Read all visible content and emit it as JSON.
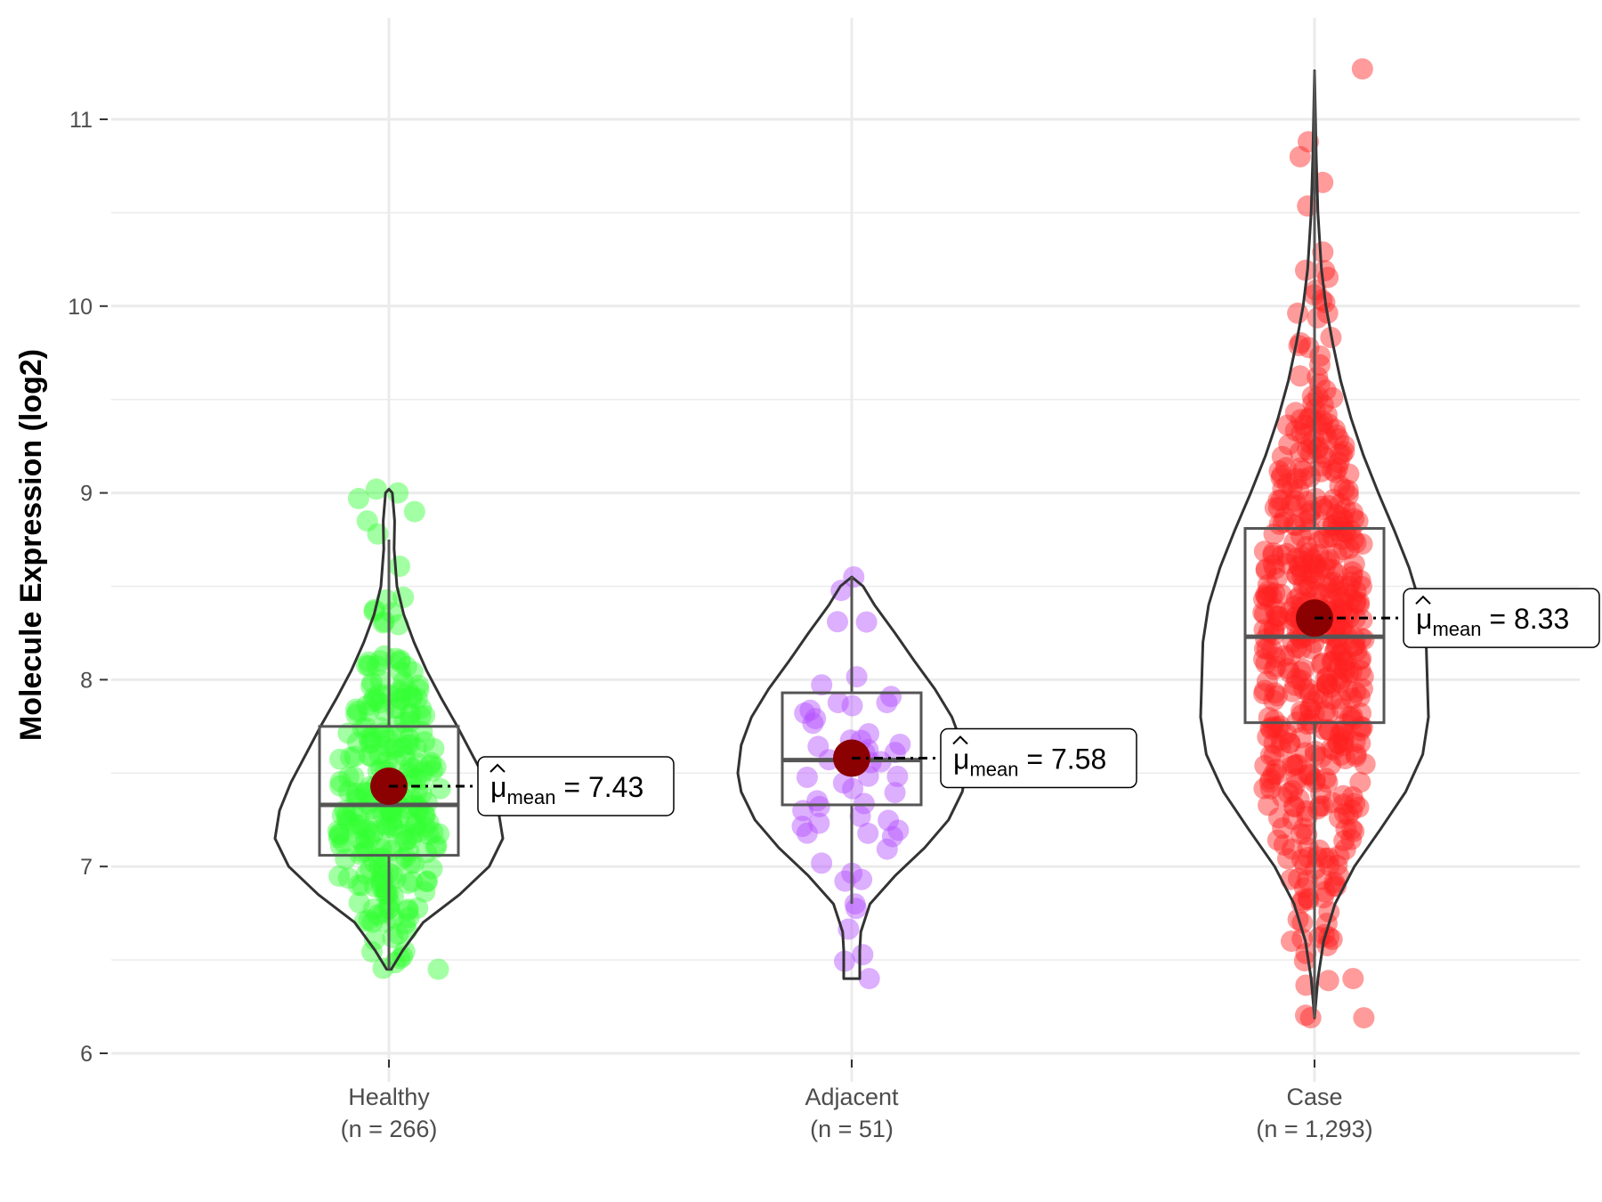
{
  "chart_data": {
    "type": "violin",
    "xlabel": "",
    "ylabel": "Molecule Expression (log2)",
    "ylim": [
      5.95,
      11.5
    ],
    "yticks": [
      6,
      7,
      8,
      9,
      10,
      11
    ],
    "grid": true,
    "mean_symbol": "μ",
    "mean_subscript": "mean",
    "groups": [
      {
        "name": "Healthy",
        "n_label": "(n = 266)",
        "n": 266,
        "color": "#33ff33",
        "box": {
          "q1": 7.06,
          "median": 7.33,
          "q3": 7.75,
          "whisker_low": 6.45,
          "whisker_high": 8.75
        },
        "violin_range": [
          6.45,
          9.02
        ],
        "mean": 7.43,
        "mean_label": "7.43",
        "violin_profile": [
          [
            6.45,
            0.02
          ],
          [
            6.55,
            0.12
          ],
          [
            6.7,
            0.3
          ],
          [
            6.85,
            0.62
          ],
          [
            7.0,
            0.88
          ],
          [
            7.15,
            1.0
          ],
          [
            7.3,
            0.96
          ],
          [
            7.45,
            0.86
          ],
          [
            7.6,
            0.73
          ],
          [
            7.75,
            0.6
          ],
          [
            7.9,
            0.46
          ],
          [
            8.05,
            0.33
          ],
          [
            8.2,
            0.22
          ],
          [
            8.35,
            0.13
          ],
          [
            8.5,
            0.07
          ],
          [
            8.7,
            0.045
          ],
          [
            8.85,
            0.05
          ],
          [
            9.0,
            0.03
          ],
          [
            9.02,
            0.0
          ]
        ],
        "outliers": [
          6.45,
          8.78,
          8.85,
          8.9,
          8.97,
          9.0,
          9.02
        ]
      },
      {
        "name": "Adjacent",
        "n_label": "(n = 51)",
        "n": 51,
        "color": "#b44dff",
        "box": {
          "q1": 7.33,
          "median": 7.57,
          "q3": 7.93,
          "whisker_low": 6.8,
          "whisker_high": 8.55
        },
        "violin_range": [
          6.4,
          8.55
        ],
        "mean": 7.58,
        "mean_label": "7.58",
        "violin_profile": [
          [
            6.4,
            0.07
          ],
          [
            6.55,
            0.07
          ],
          [
            6.65,
            0.08
          ],
          [
            6.8,
            0.16
          ],
          [
            6.95,
            0.38
          ],
          [
            7.1,
            0.64
          ],
          [
            7.25,
            0.85
          ],
          [
            7.4,
            0.97
          ],
          [
            7.5,
            1.0
          ],
          [
            7.65,
            0.97
          ],
          [
            7.8,
            0.88
          ],
          [
            7.95,
            0.73
          ],
          [
            8.1,
            0.55
          ],
          [
            8.25,
            0.38
          ],
          [
            8.4,
            0.2
          ],
          [
            8.5,
            0.1
          ],
          [
            8.55,
            0.0
          ]
        ],
        "outliers": [
          6.4,
          6.8,
          8.55
        ]
      },
      {
        "name": "Case",
        "n_label": "(n = 1,293)",
        "n": 1293,
        "color": "#ff2222",
        "box": {
          "q1": 7.77,
          "median": 8.23,
          "q3": 8.81,
          "whisker_low": 6.19,
          "whisker_high": 11.26
        },
        "violin_range": [
          6.19,
          11.26
        ],
        "mean": 8.33,
        "mean_label": "8.33",
        "violin_profile": [
          [
            6.19,
            0.0
          ],
          [
            6.4,
            0.03
          ],
          [
            6.6,
            0.08
          ],
          [
            6.8,
            0.18
          ],
          [
            7.0,
            0.35
          ],
          [
            7.2,
            0.58
          ],
          [
            7.4,
            0.8
          ],
          [
            7.6,
            0.95
          ],
          [
            7.8,
            1.0
          ],
          [
            8.0,
            0.99
          ],
          [
            8.2,
            0.98
          ],
          [
            8.4,
            0.93
          ],
          [
            8.6,
            0.83
          ],
          [
            8.8,
            0.7
          ],
          [
            9.0,
            0.56
          ],
          [
            9.2,
            0.43
          ],
          [
            9.4,
            0.32
          ],
          [
            9.6,
            0.23
          ],
          [
            9.8,
            0.16
          ],
          [
            10.0,
            0.1
          ],
          [
            10.2,
            0.06
          ],
          [
            10.5,
            0.03
          ],
          [
            10.8,
            0.015
          ],
          [
            11.26,
            0.0
          ]
        ],
        "outliers": [
          6.19,
          6.4,
          6.6,
          10.8,
          10.88,
          11.27
        ]
      }
    ]
  }
}
